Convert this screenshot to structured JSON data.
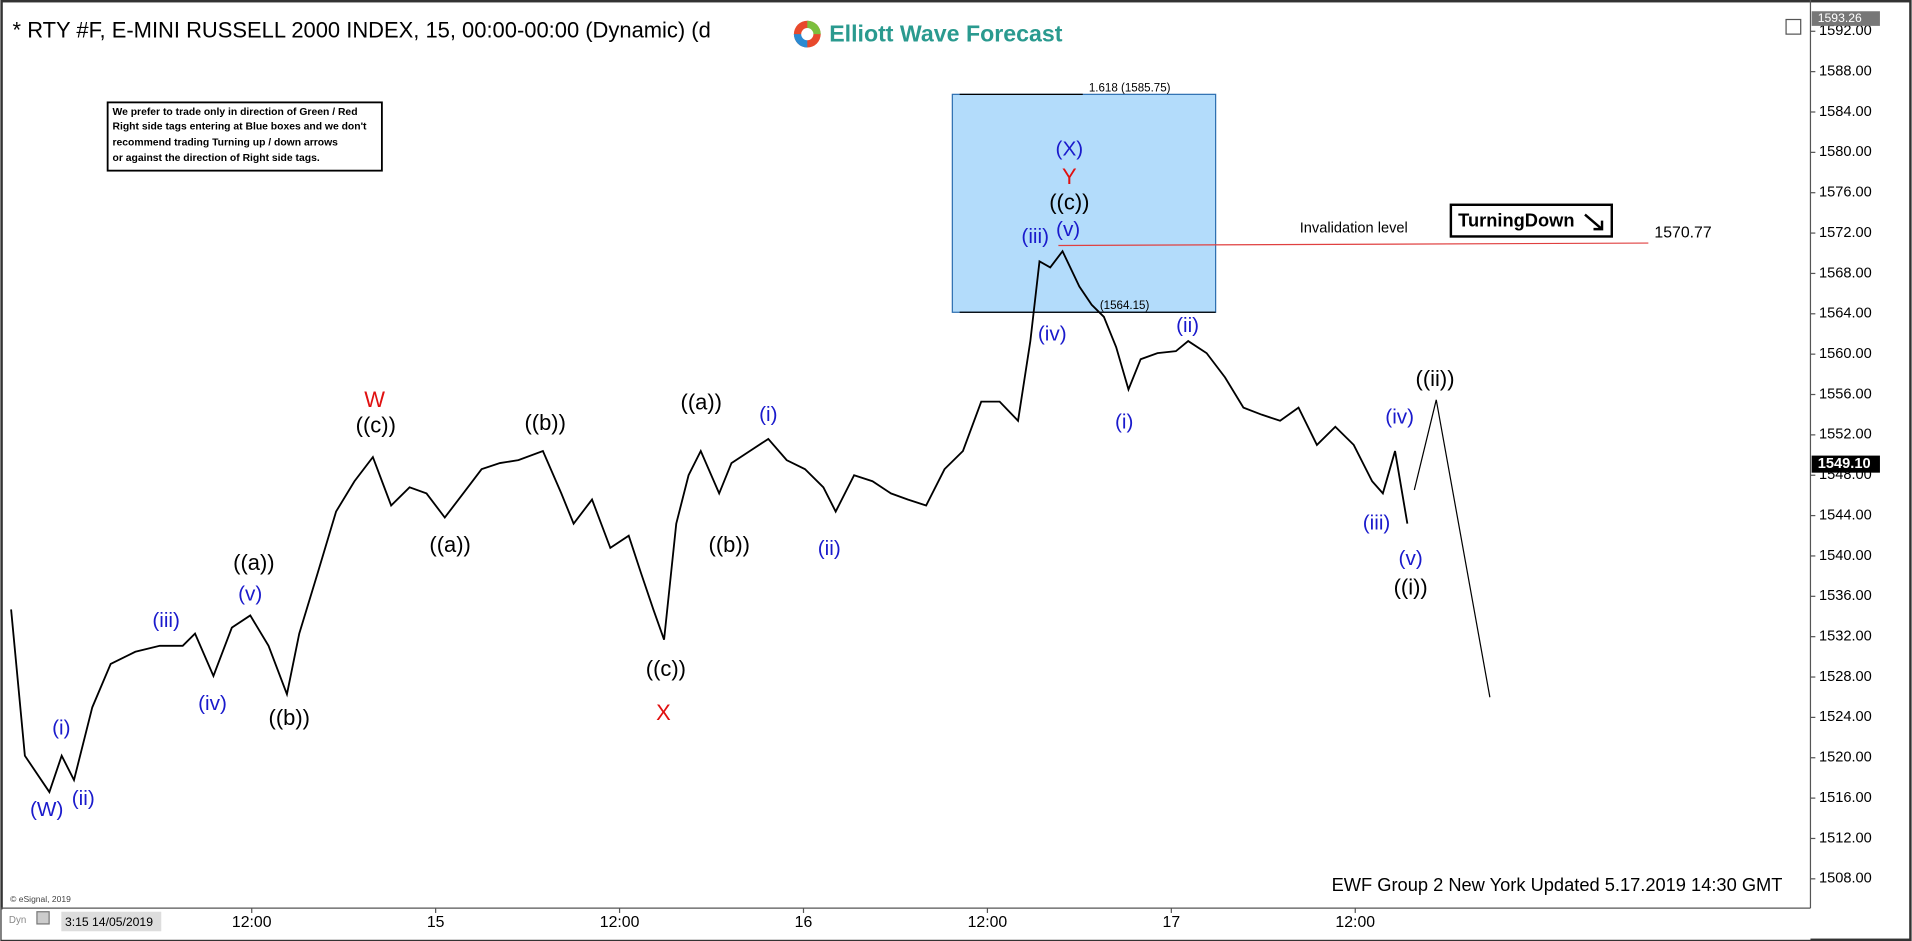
{
  "chart_data": {
    "type": "line",
    "title": "* RTY #F, E-MINI RUSSELL 2000 INDEX, 15, 00:00-00:00 (Dynamic) (d",
    "logo": "Elliott Wave Forecast",
    "color": "#000000",
    "x": [
      -3.7,
      -2.8,
      -1.2,
      -0.4,
      0.4,
      1.6,
      2.8,
      4.4,
      6.0,
      7.5,
      8.3,
      9.5,
      10.7,
      11.9,
      13.1,
      14.3,
      15.1,
      16.3,
      17.5,
      18.7,
      19.9,
      21.1,
      22.3,
      23.4,
      24.6,
      25.8,
      27.0,
      28.2,
      29.4,
      31.0,
      32.2,
      33.0,
      34.2,
      35.4,
      36.6,
      37.4,
      38.2,
      38.9,
      39.7,
      40.5,
      41.3,
      42.5,
      43.3,
      44.5,
      45.7,
      46.9,
      48.1,
      49.3,
      50.1,
      51.3,
      52.5,
      53.7,
      54.8,
      56.0,
      57.2,
      58.4,
      59.6,
      60.8,
      62.0,
      62.8,
      63.4,
      64.1,
      64.9,
      66.0,
      66.8,
      67.6,
      68.4,
      69.2,
      70.0,
      71.1,
      72.3,
      73.1,
      74.3,
      75.5,
      76.7,
      77.9,
      79.1,
      80.3,
      81.5,
      82.7,
      83.9,
      85.1,
      85.8,
      86.6,
      87.4
    ],
    "values": [
      1534.7,
      1520.2,
      1516.6,
      1520.2,
      1517.8,
      1525.0,
      1529.3,
      1530.5,
      1531.1,
      1531.1,
      1532.3,
      1528.1,
      1532.9,
      1534.1,
      1531.1,
      1526.3,
      1532.3,
      1538.3,
      1544.4,
      1547.4,
      1549.8,
      1545.0,
      1546.8,
      1546.2,
      1543.8,
      1546.2,
      1548.6,
      1549.2,
      1549.5,
      1550.4,
      1546.2,
      1543.2,
      1545.6,
      1540.8,
      1542.0,
      1538.3,
      1534.7,
      1531.7,
      1543.2,
      1548.0,
      1550.4,
      1546.2,
      1549.2,
      1550.4,
      1551.6,
      1549.5,
      1548.6,
      1546.8,
      1544.4,
      1548.0,
      1547.4,
      1546.2,
      1545.6,
      1545.0,
      1548.6,
      1550.4,
      1555.3,
      1555.3,
      1553.4,
      1561.3,
      1569.2,
      1568.6,
      1570.2,
      1566.7,
      1564.9,
      1563.7,
      1560.7,
      1556.5,
      1559.5,
      1560.1,
      1560.3,
      1561.3,
      1560.1,
      1557.7,
      1554.7,
      1554.0,
      1553.4,
      1554.7,
      1551.0,
      1552.8,
      1551.0,
      1547.4,
      1546.2,
      1550.4,
      1543.2
    ],
    "xlim": [
      -4.4,
      113.7
    ],
    "ylim": [
      1505.1,
      1595.1
    ],
    "xticks": [
      {
        "value": 12,
        "label": "12:00"
      },
      {
        "value": 24,
        "label": "15"
      },
      {
        "value": 36,
        "label": "12:00"
      },
      {
        "value": 48,
        "label": "16"
      },
      {
        "value": 60,
        "label": "12:00"
      },
      {
        "value": 72,
        "label": "17"
      },
      {
        "value": 84,
        "label": "12:00"
      }
    ],
    "yticks": [
      {
        "value": 1508,
        "label": "1508.00"
      },
      {
        "value": 1512,
        "label": "1512.00"
      },
      {
        "value": 1516,
        "label": "1516.00"
      },
      {
        "value": 1520,
        "label": "1520.00"
      },
      {
        "value": 1524,
        "label": "1524.00"
      },
      {
        "value": 1528,
        "label": "1528.00"
      },
      {
        "value": 1532,
        "label": "1532.00"
      },
      {
        "value": 1536,
        "label": "1536.00"
      },
      {
        "value": 1540,
        "label": "1540.00"
      },
      {
        "value": 1544,
        "label": "1544.00"
      },
      {
        "value": 1548,
        "label": "1548.00"
      },
      {
        "value": 1552,
        "label": "1552.00"
      },
      {
        "value": 1556,
        "label": "1556.00"
      },
      {
        "value": 1560,
        "label": "1560.00"
      },
      {
        "value": 1564,
        "label": "1564.00"
      },
      {
        "value": 1568,
        "label": "1568.00"
      },
      {
        "value": 1572,
        "label": "1572.00"
      },
      {
        "value": 1576,
        "label": "1576.00"
      },
      {
        "value": 1580,
        "label": "1580.00"
      },
      {
        "value": 1584,
        "label": "1584.00"
      },
      {
        "value": 1588,
        "label": "1588.00"
      },
      {
        "value": 1592,
        "label": "1592.00"
      }
    ],
    "top_price": 1593.26,
    "last_price": {
      "value": 1549.1,
      "label": "1549.10"
    },
    "fib_box": {
      "top": {
        "value": 1585.75,
        "label": "1.618 (1585.75)"
      },
      "bottom": {
        "value": 1564.15,
        "label": "(1564.15)"
      },
      "color": "#b3dcfb"
    },
    "invalidation": {
      "label": "Invalidation level",
      "value": 1570.77,
      "color": "#e04040"
    },
    "badge": "TurningDown",
    "notice": [
      "We prefer to trade only in direction of Green / Red",
      "Right side tags entering at Blue boxes and we don't",
      "recommend trading Turning up / down arrows",
      "or against the direction of Right side tags."
    ],
    "annotations": [
      {
        "text": "(W)",
        "color": "#1a1acc"
      },
      {
        "text": "(i)",
        "color": "#1a1acc"
      },
      {
        "text": "(ii)",
        "color": "#1a1acc"
      },
      {
        "text": "(iii)",
        "color": "#1a1acc"
      },
      {
        "text": "(iv)",
        "color": "#1a1acc"
      },
      {
        "text": "(v)",
        "color": "#1a1acc"
      },
      {
        "text": "((a))",
        "color": "#000000"
      },
      {
        "text": "((b))",
        "color": "#000000"
      },
      {
        "text": "W",
        "color": "#e01010"
      },
      {
        "text": "((c))",
        "color": "#000000"
      },
      {
        "text": "((a))",
        "color": "#000000"
      },
      {
        "text": "((b))",
        "color": "#000000"
      },
      {
        "text": "((c))",
        "color": "#000000"
      },
      {
        "text": "X",
        "color": "#e01010"
      },
      {
        "text": "((a))",
        "color": "#000000"
      },
      {
        "text": "((b))",
        "color": "#000000"
      },
      {
        "text": "(i)",
        "color": "#1a1acc"
      },
      {
        "text": "(ii)",
        "color": "#1a1acc"
      },
      {
        "text": "(X)",
        "color": "#1a1acc"
      },
      {
        "text": "Y",
        "color": "#e01010"
      },
      {
        "text": "((c))",
        "color": "#000000"
      },
      {
        "text": "(v)",
        "color": "#1a1acc"
      },
      {
        "text": "(iii)",
        "color": "#1a1acc"
      },
      {
        "text": "(iv)",
        "color": "#1a1acc"
      },
      {
        "text": "(i)",
        "color": "#1a1acc"
      },
      {
        "text": "(ii)",
        "color": "#1a1acc"
      },
      {
        "text": "(iv)",
        "color": "#1a1acc"
      },
      {
        "text": "(iii)",
        "color": "#1a1acc"
      },
      {
        "text": "(v)",
        "color": "#1a1acc"
      },
      {
        "text": "((i))",
        "color": "#000000"
      },
      {
        "text": "((ii))",
        "color": "#000000"
      }
    ],
    "footer": "EWF Group 2 New York Updated 5.17.2019 14:30 GMT",
    "copyright": "© eSignal, 2019",
    "dyn": "Dyn",
    "start_label": "3:15 14/05/2019"
  }
}
